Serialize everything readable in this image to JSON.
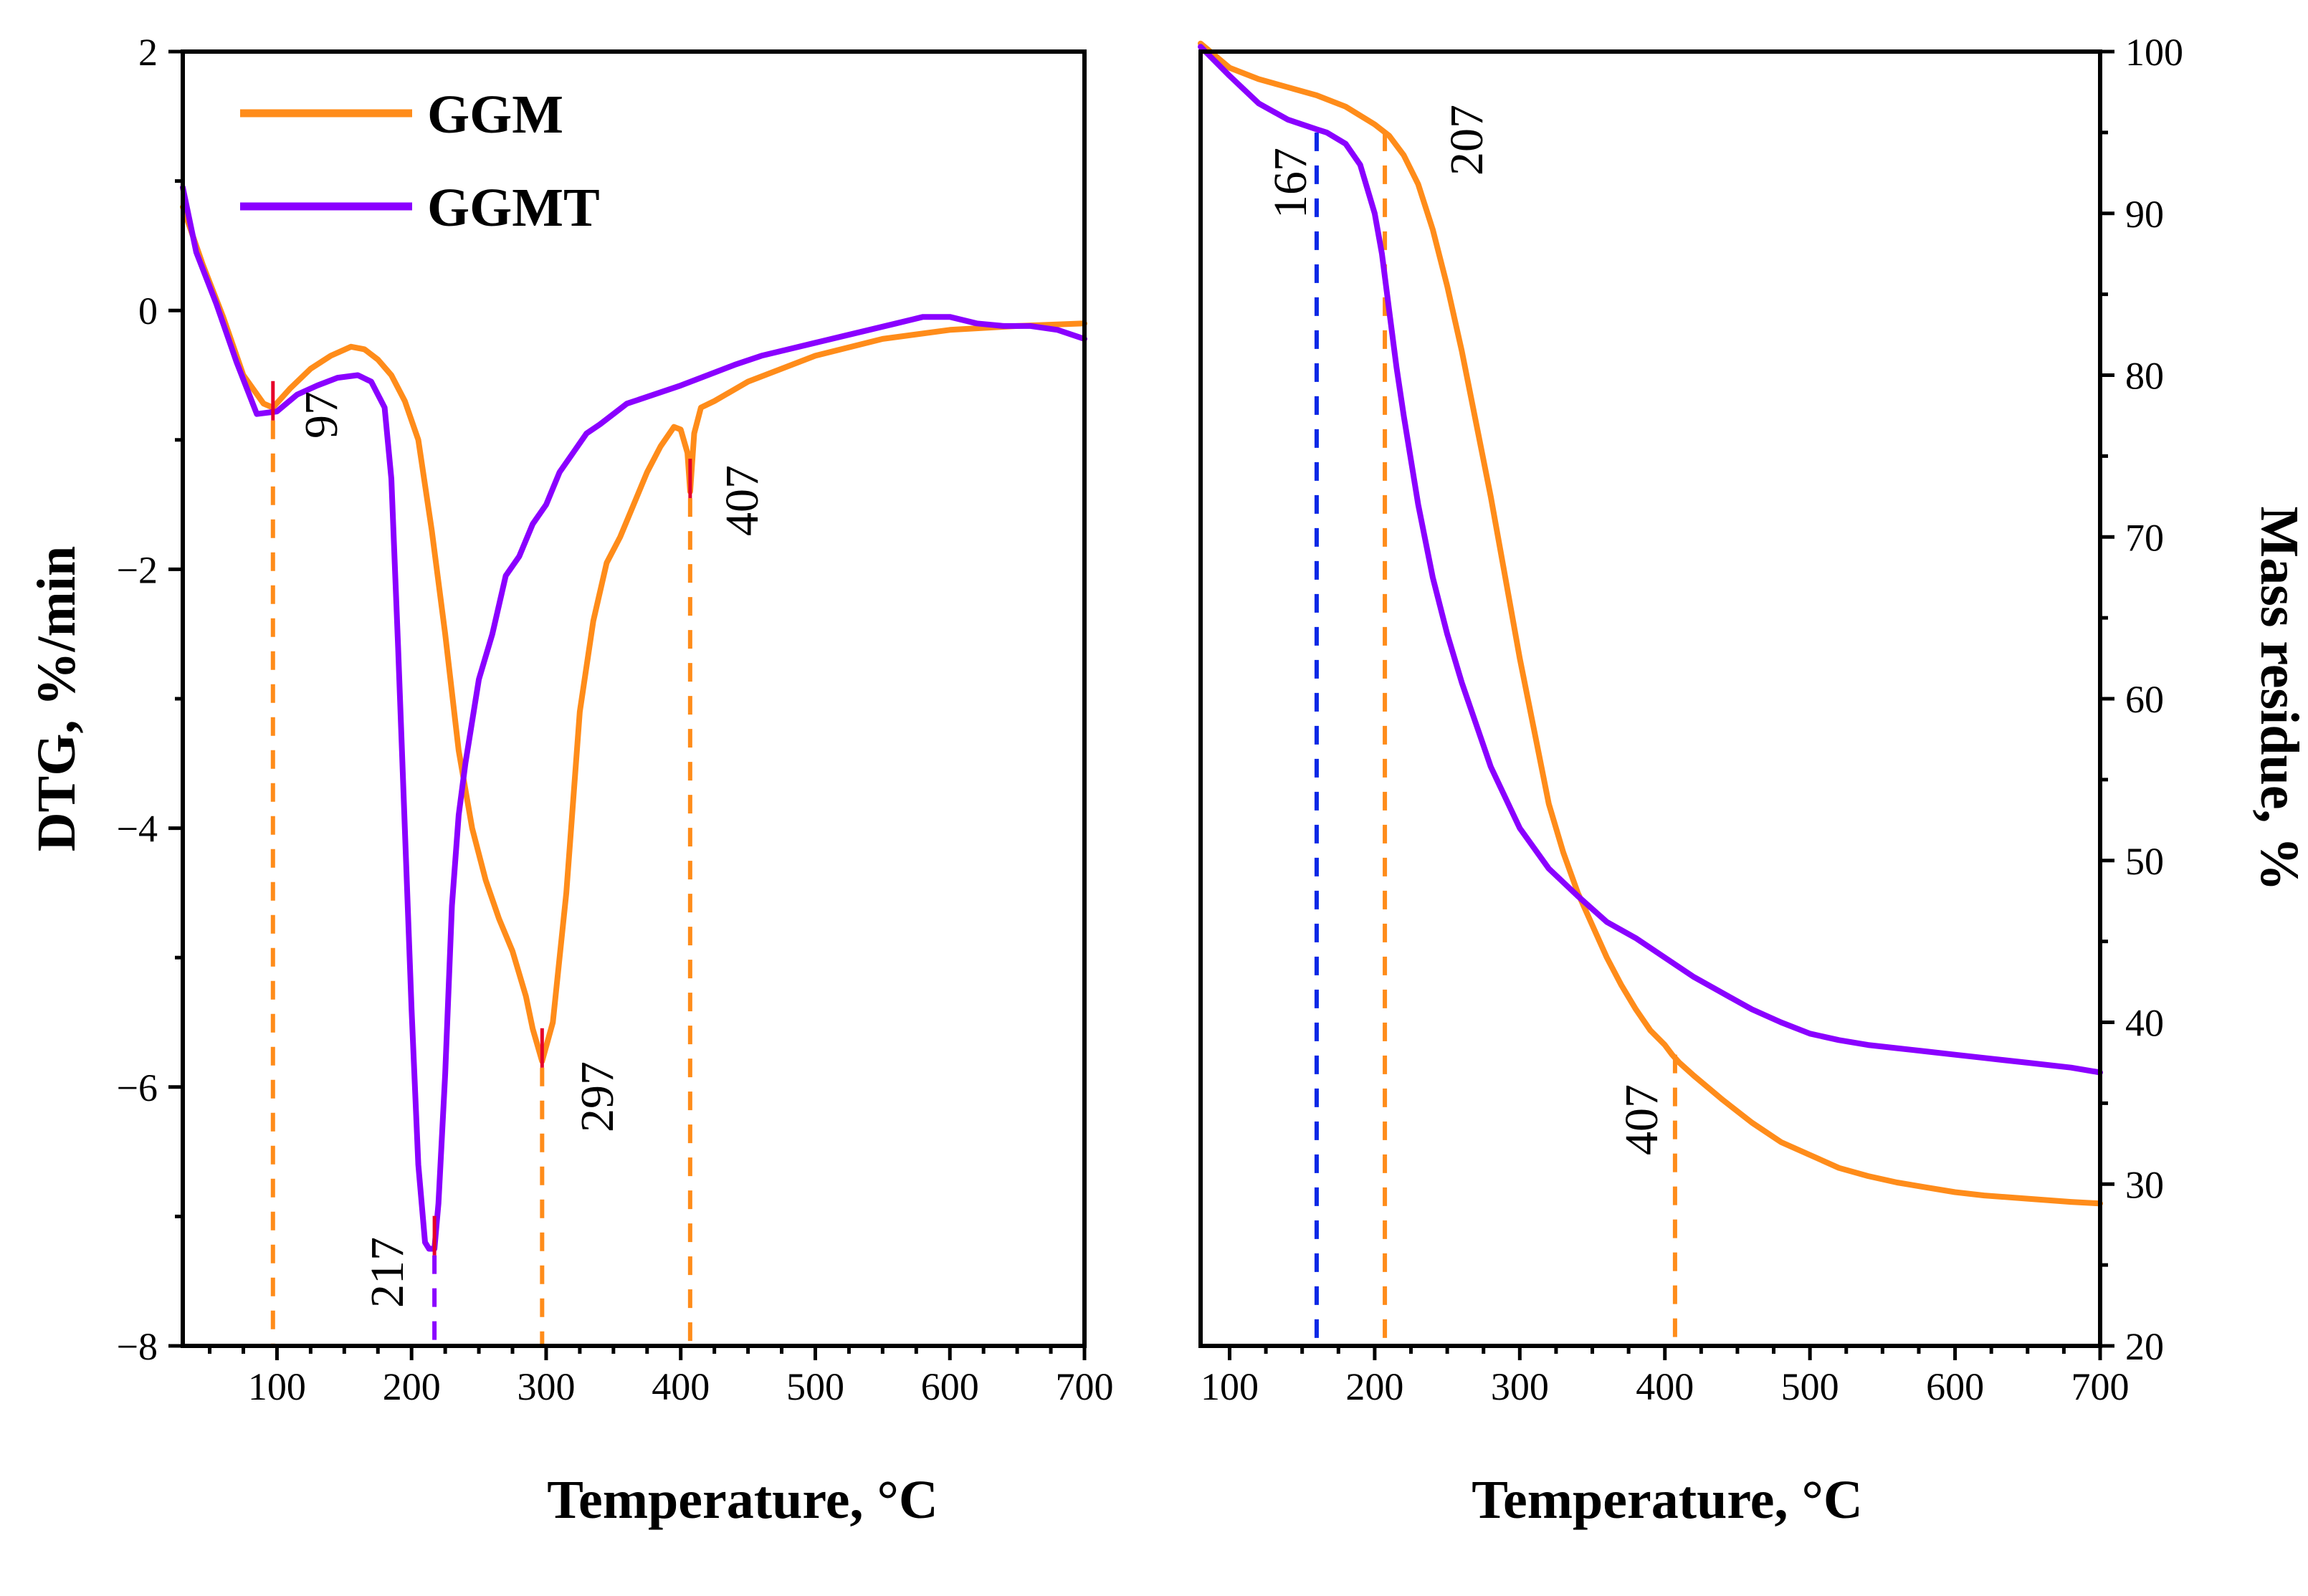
{
  "colors": {
    "ggm": "#FF8C1A",
    "ggmt": "#8A00FF",
    "blue_marker": "#0A28E6",
    "peak_mark": "#E6002A"
  },
  "chart_data": [
    {
      "type": "line",
      "xlabel": "Temperature, °C",
      "ylabel": "DTG, %/min",
      "xlim": [
        30,
        700
      ],
      "ylim": [
        -8,
        2
      ],
      "x_ticks": [
        100,
        200,
        300,
        400,
        500,
        600,
        700
      ],
      "y_ticks": [
        2,
        0,
        -2,
        -4,
        -6,
        -8
      ],
      "y_tick_labels": [
        "2",
        "0",
        "−2",
        "−4",
        "−6",
        "−8"
      ],
      "legend": {
        "placement": "top-left",
        "entries": [
          "GGM",
          "GGMT"
        ]
      },
      "grid": false,
      "series": [
        {
          "name": "GGM",
          "color": "#FF8C1A",
          "x": [
            30,
            45,
            60,
            75,
            90,
            97,
            110,
            125,
            140,
            155,
            165,
            175,
            185,
            195,
            205,
            215,
            225,
            235,
            245,
            255,
            265,
            275,
            285,
            290,
            297,
            305,
            315,
            325,
            335,
            345,
            355,
            365,
            375,
            385,
            395,
            400,
            405,
            407,
            410,
            415,
            425,
            450,
            500,
            550,
            600,
            650,
            700
          ],
          "y": [
            0.8,
            0.35,
            -0.05,
            -0.5,
            -0.72,
            -0.75,
            -0.6,
            -0.45,
            -0.35,
            -0.28,
            -0.3,
            -0.38,
            -0.5,
            -0.7,
            -1.0,
            -1.7,
            -2.5,
            -3.4,
            -4.0,
            -4.4,
            -4.7,
            -4.95,
            -5.3,
            -5.55,
            -5.8,
            -5.5,
            -4.5,
            -3.1,
            -2.4,
            -1.95,
            -1.75,
            -1.5,
            -1.25,
            -1.05,
            -0.9,
            -0.92,
            -1.1,
            -1.4,
            -0.95,
            -0.75,
            -0.7,
            -0.55,
            -0.35,
            -0.22,
            -0.15,
            -0.12,
            -0.1
          ]
        },
        {
          "name": "GGMT",
          "color": "#8A00FF",
          "x": [
            30,
            40,
            55,
            70,
            85,
            100,
            115,
            130,
            145,
            160,
            170,
            180,
            185,
            190,
            195,
            200,
            205,
            210,
            213,
            217,
            220,
            225,
            230,
            235,
            240,
            250,
            260,
            270,
            280,
            290,
            300,
            310,
            320,
            330,
            340,
            350,
            360,
            380,
            400,
            420,
            440,
            460,
            480,
            500,
            520,
            540,
            560,
            580,
            600,
            620,
            640,
            660,
            680,
            700
          ],
          "y": [
            0.95,
            0.45,
            0.05,
            -0.4,
            -0.8,
            -0.78,
            -0.65,
            -0.58,
            -0.52,
            -0.5,
            -0.55,
            -0.75,
            -1.3,
            -2.6,
            -4.0,
            -5.4,
            -6.6,
            -7.2,
            -7.25,
            -7.25,
            -6.9,
            -5.9,
            -4.6,
            -3.9,
            -3.5,
            -2.85,
            -2.5,
            -2.05,
            -1.9,
            -1.65,
            -1.5,
            -1.25,
            -1.1,
            -0.95,
            -0.88,
            -0.8,
            -0.72,
            -0.65,
            -0.58,
            -0.5,
            -0.42,
            -0.35,
            -0.3,
            -0.25,
            -0.2,
            -0.15,
            -0.1,
            -0.05,
            -0.05,
            -0.1,
            -0.12,
            -0.12,
            -0.15,
            -0.22
          ]
        }
      ],
      "annotations": [
        {
          "text": "97",
          "x": 97,
          "color": "#FF8C1A",
          "marked_y": -0.85
        },
        {
          "text": "217",
          "x": 217,
          "color": "#8A00FF",
          "marked_y": -7.3
        },
        {
          "text": "297",
          "x": 297,
          "color": "#FF8C1A",
          "marked_y": -5.85
        },
        {
          "text": "407",
          "x": 407,
          "color": "#FF8C1A",
          "marked_y": -1.45
        }
      ]
    },
    {
      "type": "line",
      "xlabel": "Temperature, °C",
      "ylabel": "Mass residue, %",
      "xlim": [
        80,
        700
      ],
      "ylim": [
        20,
        100
      ],
      "x_ticks": [
        100,
        200,
        300,
        400,
        500,
        600,
        700
      ],
      "y_ticks": [
        20,
        30,
        40,
        50,
        60,
        70,
        80,
        90,
        100
      ],
      "grid": false,
      "series": [
        {
          "name": "GGM",
          "color": "#FF8C1A",
          "x": [
            80,
            100,
            120,
            140,
            160,
            180,
            200,
            210,
            220,
            230,
            240,
            250,
            260,
            270,
            280,
            290,
            300,
            310,
            320,
            330,
            340,
            350,
            360,
            370,
            380,
            390,
            400,
            405,
            410,
            420,
            440,
            460,
            480,
            500,
            520,
            540,
            560,
            580,
            600,
            620,
            650,
            680,
            700
          ],
          "y": [
            100.5,
            99.0,
            98.3,
            97.8,
            97.3,
            96.6,
            95.5,
            94.8,
            93.6,
            91.8,
            89.0,
            85.5,
            81.5,
            77.0,
            72.5,
            67.5,
            62.5,
            58.0,
            53.5,
            50.5,
            48.0,
            46.0,
            44.0,
            42.3,
            40.8,
            39.5,
            38.6,
            38.0,
            37.5,
            36.7,
            35.2,
            33.8,
            32.6,
            31.8,
            31.0,
            30.5,
            30.1,
            29.8,
            29.5,
            29.3,
            29.1,
            28.9,
            28.8
          ]
        },
        {
          "name": "GGMT",
          "color": "#8A00FF",
          "x": [
            80,
            100,
            120,
            140,
            160,
            167,
            180,
            190,
            200,
            205,
            210,
            215,
            220,
            230,
            240,
            250,
            260,
            280,
            300,
            320,
            340,
            360,
            380,
            400,
            420,
            440,
            460,
            480,
            500,
            520,
            540,
            560,
            580,
            600,
            620,
            650,
            680,
            700
          ],
          "y": [
            100.3,
            98.5,
            96.8,
            95.8,
            95.2,
            95.0,
            94.3,
            93.0,
            90.0,
            87.5,
            84.0,
            80.5,
            77.5,
            72.0,
            67.5,
            64.0,
            61.0,
            55.8,
            52.0,
            49.5,
            47.8,
            46.2,
            45.2,
            44.0,
            42.8,
            41.8,
            40.8,
            40.0,
            39.3,
            38.9,
            38.6,
            38.4,
            38.2,
            38.0,
            37.8,
            37.5,
            37.2,
            36.9
          ]
        }
      ],
      "annotations": [
        {
          "text": "167",
          "x": 160,
          "color": "#0A28E6",
          "marked_y": 95.0
        },
        {
          "text": "207",
          "x": 207,
          "color": "#FF8C1A",
          "marked_y": 95.0
        },
        {
          "text": "407",
          "x": 407,
          "color": "#FF8C1A",
          "marked_y": 38.0
        }
      ]
    }
  ]
}
